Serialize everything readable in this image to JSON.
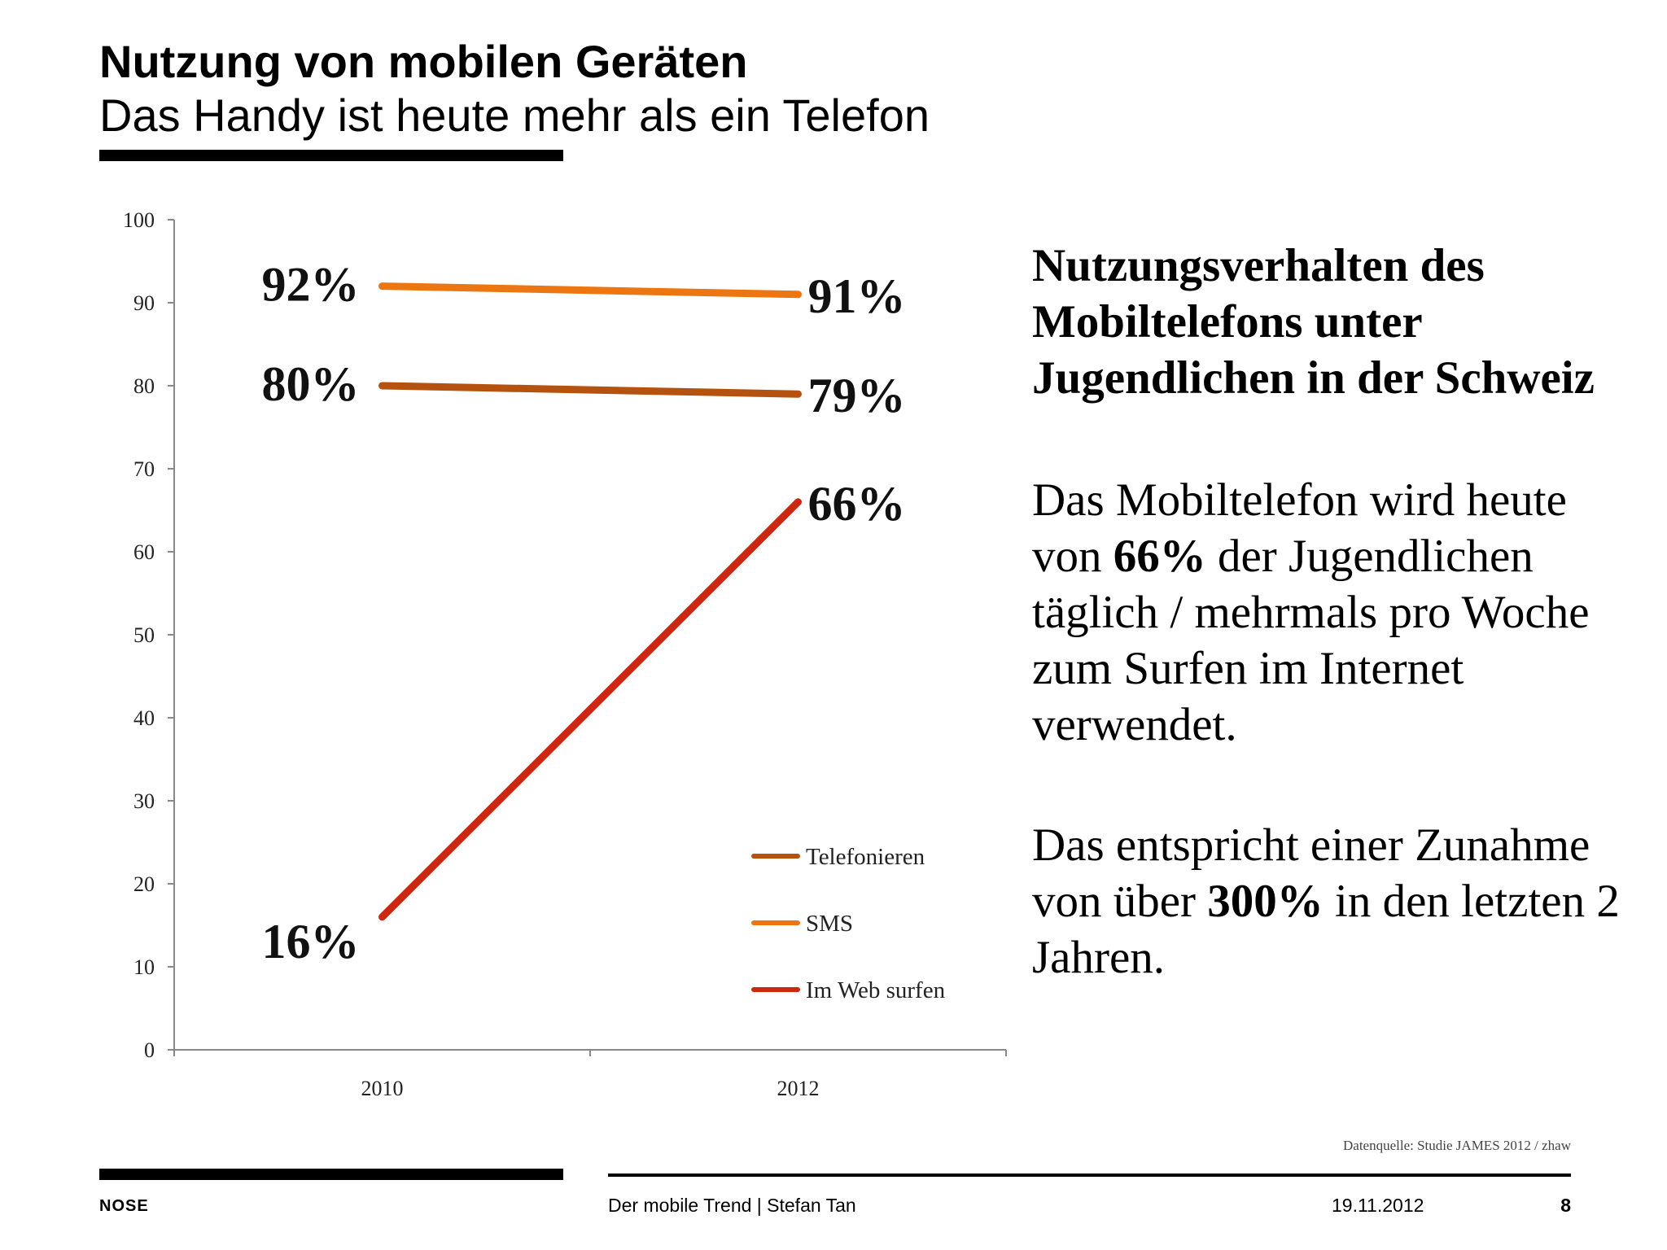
{
  "slide": {
    "title": "Nutzung von mobilen Geräten",
    "subtitle": "Das Handy ist heute mehr als ein Telefon"
  },
  "chart_data": {
    "type": "line",
    "x": [
      "2010",
      "2012"
    ],
    "ylim": [
      0,
      100
    ],
    "yticks": [
      "0",
      "10",
      "20",
      "30",
      "40",
      "50",
      "60",
      "70",
      "80",
      "90",
      "100"
    ],
    "grid": false,
    "legend_position": "bottom-right",
    "series": [
      {
        "name": "Telefonieren",
        "values": [
          80,
          79
        ],
        "labels": [
          "80%",
          "79%"
        ],
        "color": "#b5520f"
      },
      {
        "name": "SMS",
        "values": [
          92,
          91
        ],
        "labels": [
          "92%",
          "91%"
        ],
        "color": "#ec7612"
      },
      {
        "name": "Im Web surfen",
        "values": [
          16,
          66
        ],
        "labels": [
          "16%",
          "66%"
        ],
        "color": "#cc2710"
      }
    ]
  },
  "side": {
    "heading": "Nutzungsverhalten des Mobiltelefons unter Jugendlichen in der Schweiz",
    "p1_pre": "Das Mobiltelefon wird heute von ",
    "p1_bold": "66%",
    "p1_post": " der Jugendlichen täglich / mehrmals pro Woche zum Surfen im Internet verwendet.",
    "p2_pre": "Das entspricht einer Zunahme von über ",
    "p2_bold": "300%",
    "p2_post": " in den letzten 2 Jahren."
  },
  "source": "Datenquelle: Studie JAMES 2012 / zhaw",
  "footer": {
    "brand": "NOSE",
    "event": "Der mobile Trend | Stefan Tan",
    "date": "19.11.2012",
    "page": "8"
  }
}
